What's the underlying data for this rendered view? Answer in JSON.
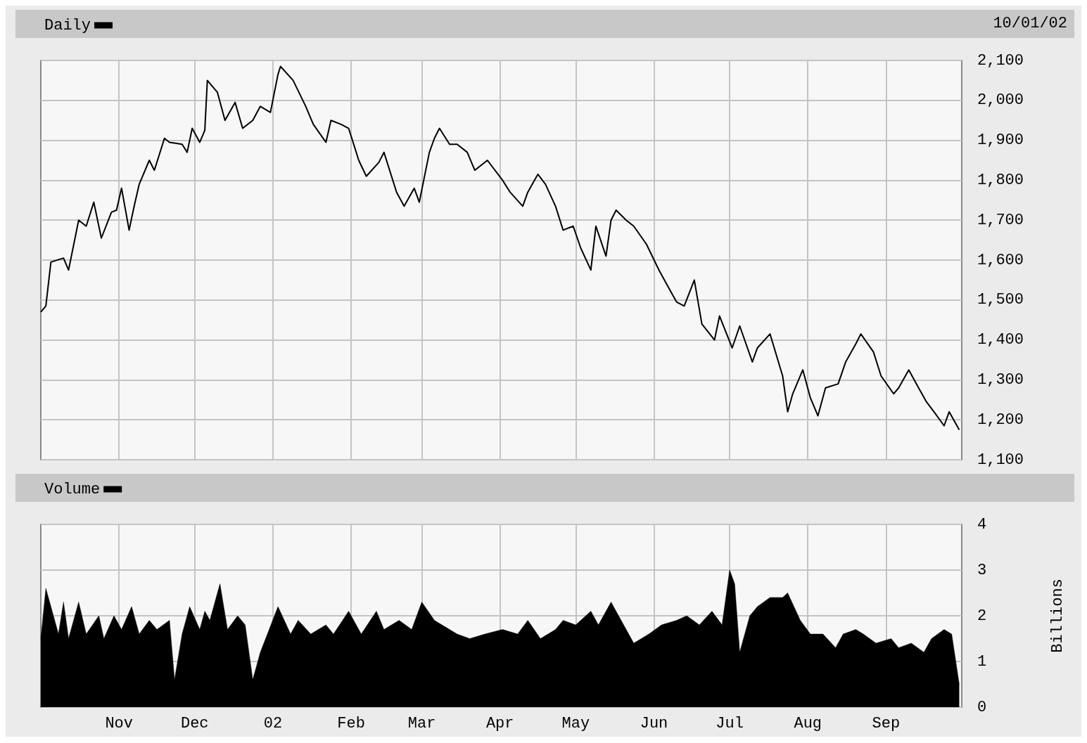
{
  "chart_data": [
    {
      "type": "line",
      "annotations": [
        "10/01/02"
      ],
      "legend": "top left",
      "grid": true,
      "marker": "none",
      "line_style": "solid",
      "tick_labels": "y",
      "xlim": [
        "2001-10-01",
        "2002-10-01"
      ],
      "xticks": [
        {
          "value": "2001-11-01",
          "label": null
        },
        {
          "value": "2001-12-01",
          "label": null
        },
        {
          "value": "2002-01-01",
          "label": null
        },
        {
          "value": "2002-02-01",
          "label": null
        },
        {
          "value": "2002-03-01",
          "label": null
        },
        {
          "value": "2002-04-01",
          "label": null
        },
        {
          "value": "2002-05-01",
          "label": null
        },
        {
          "value": "2002-06-01",
          "label": null
        },
        {
          "value": "2002-07-01",
          "label": null
        },
        {
          "value": "2002-08-01",
          "label": null
        },
        {
          "value": "2002-09-01",
          "label": null
        }
      ],
      "ylim": [
        1100,
        2100
      ],
      "yticks": [
        {
          "value": 1100,
          "label": "1,100"
        },
        {
          "value": 1200,
          "label": "1,200"
        },
        {
          "value": 1300,
          "label": "1,300"
        },
        {
          "value": 1400,
          "label": "1,400"
        },
        {
          "value": 1500,
          "label": "1,500"
        },
        {
          "value": 1600,
          "label": "1,600"
        },
        {
          "value": 1700,
          "label": "1,700"
        },
        {
          "value": 1800,
          "label": "1,800"
        },
        {
          "value": 1900,
          "label": "1,900"
        },
        {
          "value": 2000,
          "label": "2,000"
        },
        {
          "value": 2100,
          "label": "2,100"
        }
      ],
      "series": [
        {
          "name": "Daily",
          "color": "#000000",
          "x": [
            "2001-10-01",
            "2001-10-03",
            "2001-10-05",
            "2001-10-10",
            "2001-10-12",
            "2001-10-16",
            "2001-10-19",
            "2001-10-22",
            "2001-10-25",
            "2001-10-29",
            "2001-10-31",
            "2001-11-02",
            "2001-11-05",
            "2001-11-07",
            "2001-11-09",
            "2001-11-13",
            "2001-11-15",
            "2001-11-19",
            "2001-11-21",
            "2001-11-26",
            "2001-11-28",
            "2001-11-30",
            "2001-12-03",
            "2001-12-05",
            "2001-12-06",
            "2001-12-10",
            "2001-12-13",
            "2001-12-17",
            "2001-12-20",
            "2001-12-24",
            "2001-12-27",
            "2001-12-31",
            "2002-01-03",
            "2002-01-04",
            "2002-01-09",
            "2002-01-14",
            "2002-01-17",
            "2002-01-22",
            "2002-01-24",
            "2002-01-28",
            "2002-01-31",
            "2002-02-04",
            "2002-02-07",
            "2002-02-12",
            "2002-02-14",
            "2002-02-19",
            "2002-02-22",
            "2002-02-26",
            "2002-02-28",
            "2002-03-04",
            "2002-03-06",
            "2002-03-08",
            "2002-03-12",
            "2002-03-15",
            "2002-03-19",
            "2002-03-22",
            "2002-03-27",
            "2002-04-02",
            "2002-04-05",
            "2002-04-10",
            "2002-04-12",
            "2002-04-16",
            "2002-04-19",
            "2002-04-23",
            "2002-04-26",
            "2002-04-30",
            "2002-05-03",
            "2002-05-07",
            "2002-05-09",
            "2002-05-13",
            "2002-05-15",
            "2002-05-17",
            "2002-05-21",
            "2002-05-24",
            "2002-05-29",
            "2002-06-03",
            "2002-06-06",
            "2002-06-10",
            "2002-06-13",
            "2002-06-17",
            "2002-06-20",
            "2002-06-25",
            "2002-06-27",
            "2002-07-02",
            "2002-07-05",
            "2002-07-10",
            "2002-07-12",
            "2002-07-17",
            "2002-07-22",
            "2002-07-24",
            "2002-07-26",
            "2002-07-30",
            "2002-08-02",
            "2002-08-05",
            "2002-08-08",
            "2002-08-13",
            "2002-08-16",
            "2002-08-20",
            "2002-08-22",
            "2002-08-27",
            "2002-08-30",
            "2002-09-04",
            "2002-09-06",
            "2002-09-10",
            "2002-09-13",
            "2002-09-17",
            "2002-09-20",
            "2002-09-24",
            "2002-09-26",
            "2002-09-30"
          ],
          "values": [
            1470,
            1485,
            1595,
            1605,
            1575,
            1700,
            1685,
            1745,
            1655,
            1720,
            1725,
            1780,
            1675,
            1735,
            1790,
            1850,
            1825,
            1905,
            1895,
            1890,
            1870,
            1930,
            1895,
            1925,
            2050,
            2020,
            1950,
            1995,
            1930,
            1950,
            1985,
            1970,
            2065,
            2085,
            2050,
            1985,
            1940,
            1895,
            1950,
            1940,
            1930,
            1850,
            1810,
            1845,
            1870,
            1770,
            1735,
            1780,
            1745,
            1870,
            1905,
            1930,
            1890,
            1890,
            1870,
            1825,
            1850,
            1800,
            1770,
            1735,
            1770,
            1815,
            1790,
            1735,
            1675,
            1685,
            1630,
            1575,
            1685,
            1610,
            1700,
            1725,
            1700,
            1685,
            1640,
            1575,
            1540,
            1495,
            1485,
            1550,
            1440,
            1400,
            1460,
            1380,
            1435,
            1345,
            1380,
            1415,
            1310,
            1220,
            1265,
            1325,
            1255,
            1210,
            1280,
            1290,
            1345,
            1390,
            1415,
            1370,
            1310,
            1265,
            1280,
            1325,
            1290,
            1245,
            1220,
            1185,
            1220,
            1175
          ]
        }
      ]
    },
    {
      "type": "area",
      "ylabel": "Billions",
      "legend": "top left",
      "grid": true,
      "marker": "none",
      "xlim": [
        "2001-10-01",
        "2002-10-01"
      ],
      "xticks": [
        {
          "value": "2001-11-01",
          "label": "Nov"
        },
        {
          "value": "2001-12-01",
          "label": "Dec"
        },
        {
          "value": "2002-01-01",
          "label": "02"
        },
        {
          "value": "2002-02-01",
          "label": "Feb"
        },
        {
          "value": "2002-03-01",
          "label": "Mar"
        },
        {
          "value": "2002-04-01",
          "label": "Apr"
        },
        {
          "value": "2002-05-01",
          "label": "May"
        },
        {
          "value": "2002-06-01",
          "label": "Jun"
        },
        {
          "value": "2002-07-01",
          "label": "Jul"
        },
        {
          "value": "2002-08-01",
          "label": "Aug"
        },
        {
          "value": "2002-09-01",
          "label": "Sep"
        }
      ],
      "ylim": [
        0,
        4
      ],
      "yticks": [
        0,
        1,
        2,
        3,
        4
      ],
      "series": [
        {
          "name": "Volume",
          "color": "#000000",
          "x": [
            "2001-10-01",
            "2001-10-03",
            "2001-10-08",
            "2001-10-10",
            "2001-10-12",
            "2001-10-16",
            "2001-10-19",
            "2001-10-24",
            "2001-10-26",
            "2001-10-30",
            "2001-11-02",
            "2001-11-06",
            "2001-11-09",
            "2001-11-13",
            "2001-11-16",
            "2001-11-21",
            "2001-11-23",
            "2001-11-26",
            "2001-11-29",
            "2001-12-03",
            "2001-12-05",
            "2001-12-07",
            "2001-12-11",
            "2001-12-14",
            "2001-12-18",
            "2001-12-21",
            "2001-12-24",
            "2001-12-27",
            "2002-01-03",
            "2002-01-08",
            "2002-01-11",
            "2002-01-16",
            "2002-01-22",
            "2002-01-25",
            "2002-01-31",
            "2002-02-05",
            "2002-02-11",
            "2002-02-14",
            "2002-02-20",
            "2002-02-25",
            "2002-03-01",
            "2002-03-06",
            "2002-03-12",
            "2002-03-15",
            "2002-03-20",
            "2002-03-26",
            "2002-04-02",
            "2002-04-08",
            "2002-04-12",
            "2002-04-17",
            "2002-04-23",
            "2002-04-26",
            "2002-05-01",
            "2002-05-07",
            "2002-05-10",
            "2002-05-15",
            "2002-05-20",
            "2002-05-24",
            "2002-05-30",
            "2002-06-04",
            "2002-06-10",
            "2002-06-14",
            "2002-06-19",
            "2002-06-24",
            "2002-06-28",
            "2002-07-01",
            "2002-07-03",
            "2002-07-05",
            "2002-07-09",
            "2002-07-12",
            "2002-07-17",
            "2002-07-22",
            "2002-07-24",
            "2002-07-29",
            "2002-08-02",
            "2002-08-07",
            "2002-08-12",
            "2002-08-15",
            "2002-08-20",
            "2002-08-23",
            "2002-08-28",
            "2002-09-03",
            "2002-09-06",
            "2002-09-11",
            "2002-09-16",
            "2002-09-19",
            "2002-09-24",
            "2002-09-27",
            "2002-09-30"
          ],
          "values": [
            1.5,
            2.6,
            1.6,
            2.3,
            1.5,
            2.3,
            1.6,
            2.0,
            1.5,
            2.0,
            1.7,
            2.2,
            1.6,
            1.9,
            1.7,
            1.9,
            0.6,
            1.6,
            2.2,
            1.7,
            2.1,
            1.9,
            2.7,
            1.7,
            2.0,
            1.8,
            0.6,
            1.2,
            2.2,
            1.6,
            1.9,
            1.6,
            1.8,
            1.6,
            2.1,
            1.6,
            2.1,
            1.7,
            1.9,
            1.7,
            2.3,
            1.9,
            1.7,
            1.6,
            1.5,
            1.6,
            1.7,
            1.6,
            1.9,
            1.5,
            1.7,
            1.9,
            1.8,
            2.1,
            1.8,
            2.3,
            1.8,
            1.4,
            1.6,
            1.8,
            1.9,
            2.0,
            1.8,
            2.1,
            1.8,
            3.0,
            2.7,
            1.2,
            2.0,
            2.2,
            2.4,
            2.4,
            2.5,
            1.9,
            1.6,
            1.6,
            1.3,
            1.6,
            1.7,
            1.6,
            1.4,
            1.5,
            1.3,
            1.4,
            1.2,
            1.5,
            1.7,
            1.6,
            0.5
          ]
        }
      ]
    }
  ]
}
